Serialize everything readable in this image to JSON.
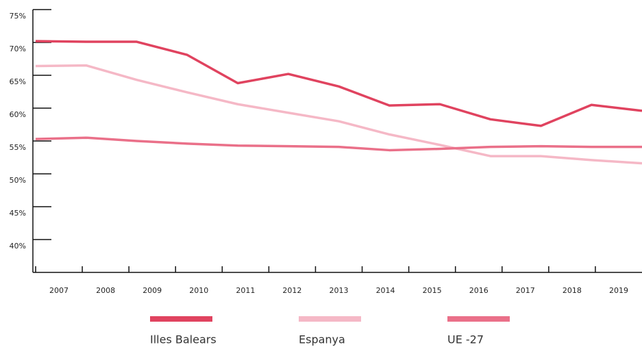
{
  "chart_data": {
    "type": "line",
    "categories": [
      "2007",
      "2008",
      "2009",
      "2010",
      "2011",
      "2012",
      "2013",
      "2014",
      "2015",
      "2016",
      "2017",
      "2018",
      "2019"
    ],
    "series": [
      {
        "name": "Illes Balears",
        "color": "#e0435f",
        "values": [
          70.2,
          70.1,
          70.1,
          68.1,
          63.8,
          65.2,
          63.3,
          60.4,
          60.6,
          58.3,
          57.3,
          60.5,
          59.6
        ]
      },
      {
        "name": "Espanya",
        "color": "#f5b8c6",
        "values": [
          66.4,
          66.5,
          64.3,
          62.4,
          60.6,
          59.3,
          58.0,
          56.0,
          54.4,
          52.7,
          52.7,
          52.1,
          51.6
        ]
      },
      {
        "name": "UE -27",
        "color": "#ea7089",
        "values": [
          55.3,
          55.5,
          55.0,
          54.6,
          54.3,
          54.2,
          54.1,
          53.6,
          53.8,
          54.1,
          54.2,
          54.1,
          54.1
        ]
      }
    ],
    "ylim": [
      35,
      75
    ],
    "yticks": [
      {
        "value": 40,
        "label": "40%"
      },
      {
        "value": 45,
        "label": "45%"
      },
      {
        "value": 50,
        "label": "50%"
      },
      {
        "value": 55,
        "label": "55%"
      },
      {
        "value": 60,
        "label": "60%"
      },
      {
        "value": 65,
        "label": "65%"
      },
      {
        "value": 70,
        "label": "70%"
      },
      {
        "value": 75,
        "label": "75%"
      }
    ]
  }
}
